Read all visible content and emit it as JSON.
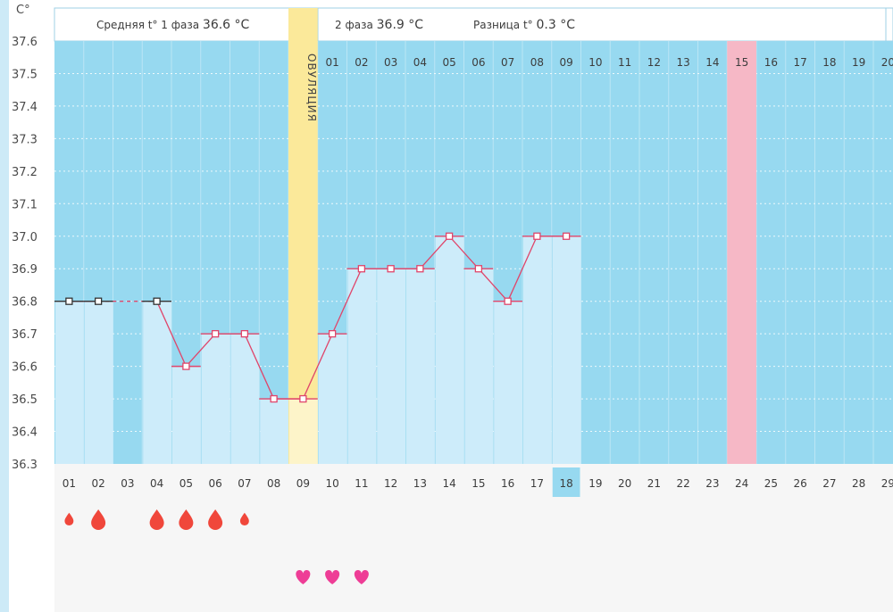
{
  "chart_data": {
    "type": "line",
    "title": "",
    "ylabel": "C°",
    "ylim": [
      36.3,
      37.6
    ],
    "yticks": [
      "37.6",
      "37.5",
      "37.4",
      "37.3",
      "37.2",
      "37.1",
      "37.0",
      "36.9",
      "36.8",
      "36.7",
      "36.6",
      "36.5",
      "36.4",
      "36.3"
    ],
    "phase_summary": {
      "phase1_label": "Средняя t° 1 фаза",
      "phase1_value": "36.6 °C",
      "phase2_label": "2 фаза",
      "phase2_value": "36.9 °C",
      "diff_label": "Разница t°",
      "diff_value": "0.3 °C"
    },
    "ovulation_label": "ОВУЛЯЦИЯ",
    "ovulation_day": 9,
    "post_ovulation_day_labels": [
      "01",
      "02",
      "03",
      "04",
      "05",
      "06",
      "07",
      "08",
      "09",
      "10",
      "11",
      "12",
      "13",
      "14",
      "15",
      "16",
      "17",
      "18",
      "19",
      "20"
    ],
    "highlighted_post_day": "15",
    "cycle_day_labels": [
      "01",
      "02",
      "03",
      "04",
      "05",
      "06",
      "07",
      "08",
      "09",
      "10",
      "11",
      "12",
      "13",
      "14",
      "15",
      "16",
      "17",
      "18",
      "19",
      "20",
      "21",
      "22",
      "23",
      "24",
      "25",
      "26",
      "27",
      "28",
      "29"
    ],
    "current_day": "18",
    "temperatures": [
      {
        "day": 1,
        "value": 36.8
      },
      {
        "day": 2,
        "value": 36.8
      },
      {
        "day": 4,
        "value": 36.8
      },
      {
        "day": 5,
        "value": 36.6
      },
      {
        "day": 6,
        "value": 36.7
      },
      {
        "day": 7,
        "value": 36.7
      },
      {
        "day": 8,
        "value": 36.5
      },
      {
        "day": 9,
        "value": 36.5
      },
      {
        "day": 10,
        "value": 36.7
      },
      {
        "day": 11,
        "value": 36.9
      },
      {
        "day": 12,
        "value": 36.9
      },
      {
        "day": 13,
        "value": 36.9
      },
      {
        "day": 14,
        "value": 37.0
      },
      {
        "day": 15,
        "value": 36.9
      },
      {
        "day": 16,
        "value": 36.8
      },
      {
        "day": 17,
        "value": 37.0
      },
      {
        "day": 18,
        "value": 37.0
      }
    ],
    "phase1_last_day": 4,
    "bleeding": [
      {
        "day": 1,
        "size": "small"
      },
      {
        "day": 2,
        "size": "large"
      },
      {
        "day": 4,
        "size": "large"
      },
      {
        "day": 5,
        "size": "large"
      },
      {
        "day": 6,
        "size": "large"
      },
      {
        "day": 7,
        "size": "small"
      }
    ],
    "hearts": [
      9,
      10,
      11
    ],
    "colors": {
      "plot_bg": "#97d9f0",
      "bar": "#cdecfa",
      "ovulation": "#fbe99a",
      "highlight_day": "#f6b8c6",
      "line": "#e0456a",
      "phase1_marker": "#333333",
      "blood": "#f0473b",
      "heart": "#ee3d96",
      "sun": "#f7d64a",
      "current_day_bg": "#97d9f0"
    }
  }
}
